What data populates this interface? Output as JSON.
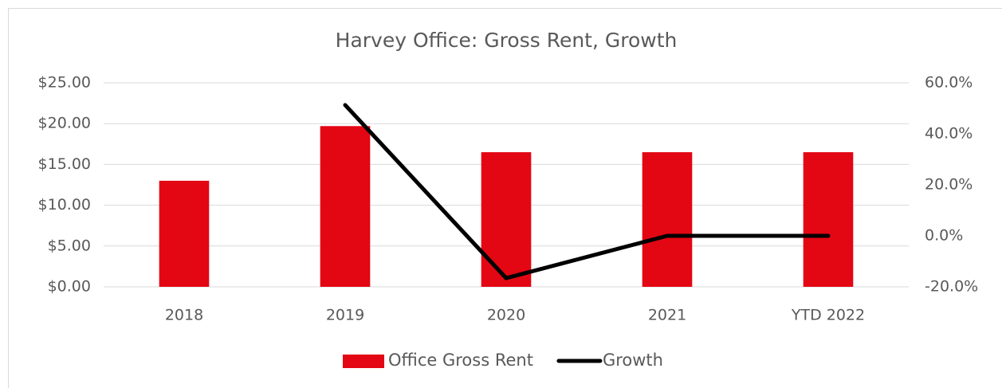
{
  "chart_data": {
    "type": "bar",
    "title": "Harvey Office: Gross Rent, Growth",
    "categories": [
      "2018",
      "2019",
      "2020",
      "2021",
      "YTD 2022"
    ],
    "series": [
      {
        "name": "Office Gross Rent",
        "type": "bar",
        "color": "#e30613",
        "values": [
          13.0,
          19.7,
          16.5,
          16.5,
          16.5
        ]
      },
      {
        "name": "Growth",
        "type": "line",
        "axis": "y2",
        "color": "#000000",
        "values": [
          null,
          51.3,
          -16.6,
          0,
          0
        ]
      }
    ],
    "ylim": [
      0,
      25
    ],
    "yticks": [
      {
        "value": 0,
        "label": "$0.00"
      },
      {
        "value": 5,
        "label": "$5.00"
      },
      {
        "value": 10,
        "label": "$10.00"
      },
      {
        "value": 15,
        "label": "$15.00"
      },
      {
        "value": 20,
        "label": "$20.00"
      },
      {
        "value": 25,
        "label": "$25.00"
      }
    ],
    "y2lim": [
      -20,
      60
    ],
    "y2ticks": [
      {
        "value": -20,
        "label": "-20.0%"
      },
      {
        "value": 0,
        "label": "0.0%"
      },
      {
        "value": 20,
        "label": "20.0%"
      },
      {
        "value": 40,
        "label": "40.0%"
      },
      {
        "value": 60,
        "label": "60.0%"
      }
    ],
    "grid": true,
    "legend": "bottom"
  }
}
